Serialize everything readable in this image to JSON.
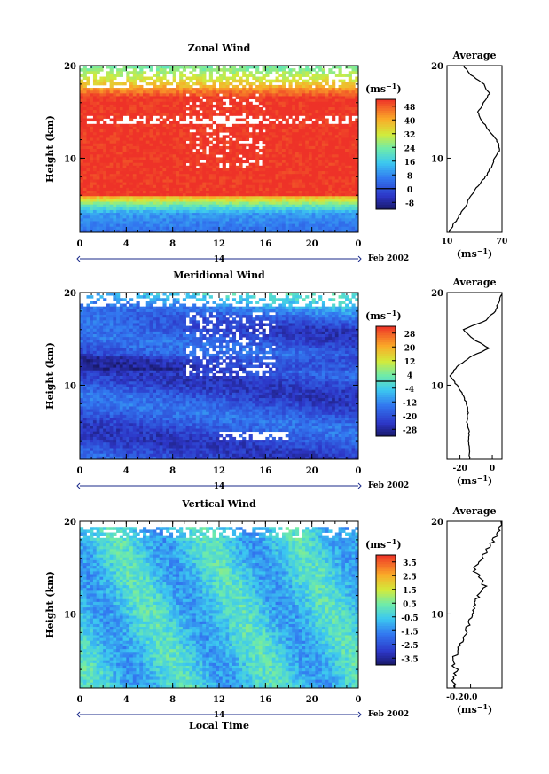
{
  "chart_data": [
    {
      "type": "heatmap",
      "title": "Zonal Wind",
      "ylabel": "Height (km)",
      "yticks": [
        "10",
        "20"
      ],
      "ylim": [
        2,
        20
      ],
      "xticks": [
        "0",
        "4",
        "8",
        "12",
        "16",
        "20",
        "0"
      ],
      "xlim": [
        0,
        24
      ],
      "day_label": "14",
      "date_label": "Feb 2002",
      "colorbar": {
        "unit_label": "(ms",
        "unit_exp": "−1",
        "ticks": [
          "48",
          "40",
          "32",
          "24",
          "16",
          "8",
          "0",
          "-8"
        ],
        "range": [
          -12,
          52
        ],
        "zero_line": 0
      },
      "profile": {
        "title": "Average",
        "unit_label": "(ms",
        "unit_exp": "−1",
        "xticks": [
          "10",
          "70"
        ],
        "xlim": [
          10,
          70
        ],
        "yticks": [
          "10",
          "20"
        ],
        "heights": [
          2,
          3,
          4,
          5,
          6,
          7,
          8,
          9,
          10,
          11,
          12,
          13,
          14,
          15,
          16,
          17,
          18,
          19,
          20
        ],
        "values": [
          12,
          18,
          25,
          31,
          36,
          44,
          52,
          58,
          62,
          68,
          64,
          56,
          48,
          44,
          50,
          56,
          50,
          36,
          28
        ]
      }
    },
    {
      "type": "heatmap",
      "title": "Meridional Wind",
      "ylabel": "Height (km)",
      "yticks": [
        "10",
        "20"
      ],
      "ylim": [
        2,
        20
      ],
      "xticks": [
        "0",
        "4",
        "8",
        "12",
        "16",
        "20",
        "0"
      ],
      "xlim": [
        0,
        24
      ],
      "day_label": "14",
      "date_label": "Feb 2002",
      "colorbar": {
        "unit_label": "(ms",
        "unit_exp": "−1",
        "ticks": [
          "28",
          "20",
          "12",
          "4",
          "-4",
          "-12",
          "-20",
          "-28"
        ],
        "range": [
          -32,
          32
        ],
        "zero_line": 0
      },
      "profile": {
        "title": "Average",
        "unit_label": "(ms",
        "unit_exp": "−1",
        "xticks": [
          "-20",
          "0"
        ],
        "xlim": [
          -28,
          6
        ],
        "yticks": [
          "10",
          "20"
        ],
        "heights": [
          2,
          3,
          4,
          5,
          6,
          7,
          8,
          9,
          10,
          11,
          12,
          13,
          14,
          15,
          16,
          17,
          18,
          19,
          20
        ],
        "values": [
          -14,
          -14,
          -15,
          -14,
          -16,
          -15,
          -16,
          -18,
          -22,
          -26,
          -22,
          -14,
          -2,
          -12,
          -18,
          -4,
          2,
          4,
          6
        ]
      }
    },
    {
      "type": "heatmap",
      "title": "Vertical Wind",
      "ylabel": "Height (km)",
      "yticks": [
        "10",
        "20"
      ],
      "ylim": [
        2,
        20
      ],
      "xticks": [
        "0",
        "4",
        "8",
        "12",
        "16",
        "20",
        "0"
      ],
      "xlim": [
        0,
        24
      ],
      "day_label": "14",
      "date_label": "Feb 2002",
      "xlabel": "Local Time",
      "colorbar": {
        "unit_label": "(ms",
        "unit_exp": "−1",
        "ticks": [
          "3.5",
          "2.5",
          "1.5",
          "0.5",
          "-0.5",
          "-1.5",
          "-2.5",
          "-3.5"
        ],
        "range": [
          -4,
          4
        ]
      },
      "profile": {
        "title": "Average",
        "unit_label": "(ms",
        "unit_exp": "−1",
        "xticks": [
          "-0.2",
          "0.0"
        ],
        "xlim": [
          -0.3,
          0.4
        ],
        "yticks": [
          "10",
          "20"
        ],
        "heights": [
          2,
          3,
          4,
          5,
          6,
          7,
          8,
          9,
          10,
          11,
          12,
          13,
          14,
          15,
          16,
          17,
          18,
          19,
          20
        ],
        "values": [
          -0.2,
          -0.22,
          -0.18,
          -0.25,
          -0.15,
          -0.12,
          -0.05,
          -0.02,
          0.02,
          0.05,
          0.1,
          0.18,
          0.12,
          0.02,
          0.15,
          0.22,
          0.3,
          0.35,
          0.38
        ]
      }
    }
  ]
}
